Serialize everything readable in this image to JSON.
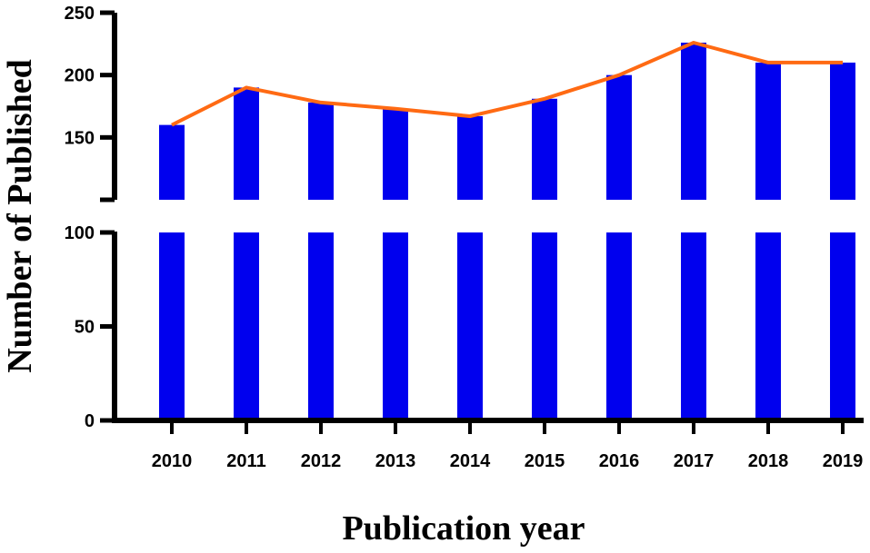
{
  "chart_data": {
    "type": "bar",
    "xlabel": "Publication year",
    "ylabel": "Number of Published",
    "categories": [
      "2010",
      "2011",
      "2012",
      "2013",
      "2014",
      "2015",
      "2016",
      "2017",
      "2018",
      "2019"
    ],
    "series": [
      {
        "type": "bar",
        "values": [
          160,
          190,
          178,
          173,
          167,
          181,
          200,
          226,
          210,
          210
        ],
        "color": "#0000ee"
      },
      {
        "type": "line",
        "values": [
          160,
          190,
          178,
          173,
          167,
          181,
          200,
          226,
          210,
          210
        ],
        "color": "#ff6a13"
      }
    ],
    "axis_break": {
      "lower_segment": [
        0,
        100
      ],
      "upper_segment": [
        100,
        250
      ]
    },
    "yticks_lower": [
      "0",
      "50",
      "100"
    ],
    "yticks_upper": [
      "150",
      "200",
      "250"
    ],
    "ylim": [
      0,
      250
    ],
    "grid": false,
    "legend": "none"
  }
}
